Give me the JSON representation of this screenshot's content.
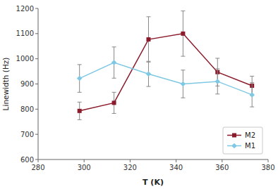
{
  "chart_data": {
    "type": "line",
    "xlabel": "T (K)",
    "ylabel": "Linewidth (Hz)",
    "xlim": [
      280,
      380
    ],
    "ylim": [
      600,
      1200
    ],
    "xticks": [
      280,
      300,
      320,
      340,
      360,
      380
    ],
    "yticks": [
      600,
      700,
      800,
      900,
      1000,
      1100,
      1200
    ],
    "grid": false,
    "legend": "lower right",
    "x": [
      298,
      313,
      328,
      343,
      358,
      373
    ],
    "series": [
      {
        "name": "M2",
        "color": "#8B1A2A",
        "marker": "square",
        "values": [
          793,
          825,
          1077,
          1100,
          947,
          893
        ],
        "errors": [
          35,
          42,
          90,
          90,
          55,
          38
        ]
      },
      {
        "name": "M1",
        "color": "#7EC8E3",
        "marker": "diamond",
        "values": [
          922,
          985,
          940,
          900,
          910,
          857
        ],
        "errors": [
          55,
          62,
          50,
          55,
          50,
          48
        ]
      }
    ]
  }
}
